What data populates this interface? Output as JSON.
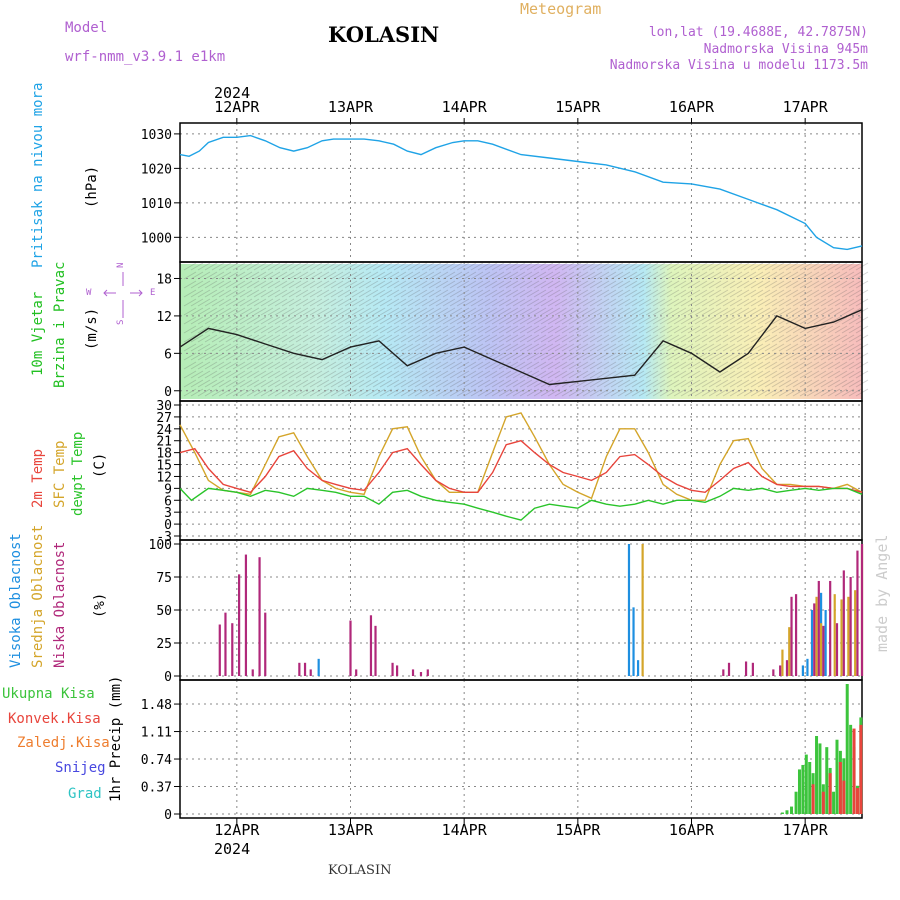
{
  "header": {
    "model_label": "Model",
    "model_name": "wrf-nmm_v3.9.1  e1km",
    "station": "KOLASIN",
    "product": "Meteogram",
    "lonlat": "lon,lat (19.4688E, 42.7875N)",
    "elevation": "Nadmorska Visina 945m",
    "model_elevation": "Nadmorska Visina u modelu 1173.5m",
    "year_top": "2024",
    "year_bottom": "2024",
    "footer_station": "KOLASIN",
    "credit": "made by Angel"
  },
  "colors": {
    "pressure": "#1fa3e6",
    "wind_label": "#22c022",
    "t2m": "#e8453c",
    "tsfc": "#d4a52a",
    "dewpoint": "#2ac42a",
    "high_cloud": "#1e8fe0",
    "mid_cloud": "#d4a52a",
    "low_cloud": "#b0287a",
    "total_precip": "#3cc43c",
    "conv_precip": "#e8453c",
    "frozen_precip": "#ee7d2e",
    "snow": "#4848e0",
    "graupel": "#2ec4c4",
    "compass": "#b060d0",
    "credit": "#cccccc",
    "grid": "#888888"
  },
  "chart_data": [
    {
      "type": "line",
      "name_labels": [
        "Pritisak na nivou mora",
        "(hPa)"
      ],
      "x_ticks": [
        "12APR",
        "13APR",
        "14APR",
        "15APR",
        "16APR",
        "17APR"
      ],
      "ylim": [
        994,
        1032
      ],
      "y_ticks": [
        1000,
        1010,
        1020,
        1030
      ],
      "x_range_days": [
        -0.5,
        5.5
      ],
      "series": [
        {
          "x": [
            -0.5,
            -0.42,
            -0.33,
            -0.25,
            -0.12,
            0,
            0.12,
            0.25,
            0.38,
            0.5,
            0.62,
            0.75,
            0.85,
            1.0,
            1.12,
            1.25,
            1.38,
            1.5,
            1.62,
            1.75,
            1.9,
            2.0,
            2.12,
            2.25,
            2.5,
            2.75,
            3.0,
            3.25,
            3.5,
            3.75,
            4.0,
            4.25,
            4.5,
            4.75,
            5.0,
            5.1,
            5.25,
            5.37,
            5.5
          ],
          "values": [
            1024,
            1023.5,
            1025,
            1027.5,
            1029,
            1029,
            1029.5,
            1028,
            1026,
            1025,
            1026,
            1028,
            1028.5,
            1028.5,
            1028.5,
            1028,
            1027,
            1025,
            1024,
            1026,
            1027.5,
            1028,
            1028,
            1027,
            1024,
            1023,
            1022,
            1021,
            1019,
            1016,
            1015.5,
            1014,
            1011,
            1008,
            1004,
            1000,
            997,
            996.5,
            997.5
          ]
        }
      ]
    },
    {
      "type": "line",
      "name_labels": [
        "10m Vjetar",
        "Brzina i Pravac",
        "(m/s)"
      ],
      "compass": {
        "north": "N",
        "south": "S",
        "west": "W",
        "east": "E"
      },
      "ylim": [
        -1,
        20
      ],
      "y_ticks": [
        0,
        6,
        12,
        18
      ],
      "series": [
        {
          "name": "speed",
          "x": [
            -0.5,
            -0.25,
            0,
            0.25,
            0.5,
            0.75,
            1.0,
            1.25,
            1.5,
            1.75,
            2.0,
            2.25,
            2.5,
            2.75,
            3.0,
            3.25,
            3.5,
            3.75,
            4.0,
            4.25,
            4.5,
            4.75,
            5.0,
            5.25,
            5.5
          ],
          "values": [
            7,
            10,
            9,
            7.5,
            6,
            5,
            7,
            8,
            4,
            6,
            7,
            5,
            3,
            1,
            1.5,
            2,
            2.5,
            8,
            6,
            3,
            6,
            12,
            10,
            11,
            13
          ]
        }
      ]
    },
    {
      "type": "line",
      "name_labels": [
        "2m Temp",
        "SFC Temp",
        "dewpt Temp",
        "(C)"
      ],
      "ylim": [
        -3,
        30
      ],
      "y_ticks": [
        -3,
        0,
        3,
        6,
        9,
        12,
        15,
        18,
        21,
        24,
        27,
        30
      ],
      "series": [
        {
          "name": "SFC Temp",
          "x": [
            -0.5,
            -0.37,
            -0.25,
            -0.12,
            0,
            0.12,
            0.25,
            0.37,
            0.5,
            0.62,
            0.75,
            0.87,
            1.0,
            1.12,
            1.25,
            1.37,
            1.5,
            1.62,
            1.75,
            1.87,
            2.0,
            2.12,
            2.25,
            2.37,
            2.5,
            2.62,
            2.75,
            2.87,
            3.0,
            3.12,
            3.25,
            3.37,
            3.5,
            3.62,
            3.75,
            3.87,
            4.0,
            4.12,
            4.25,
            4.37,
            4.5,
            4.62,
            4.75,
            4.87,
            5.0,
            5.12,
            5.25,
            5.37,
            5.5
          ],
          "values": [
            25,
            18,
            11,
            8.5,
            8,
            7.5,
            15,
            22,
            23,
            17,
            11,
            9,
            8,
            7.5,
            17,
            24,
            24.5,
            17,
            11,
            8,
            8,
            8,
            18,
            27,
            28,
            22,
            15,
            10,
            8,
            6.5,
            17,
            24,
            24,
            18,
            10,
            7.5,
            6,
            6,
            15,
            21,
            21.5,
            14,
            10,
            10,
            9.5,
            9.5,
            9,
            10,
            8
          ]
        },
        {
          "name": "2m Temp",
          "x": [
            -0.5,
            -0.37,
            -0.25,
            -0.12,
            0,
            0.12,
            0.25,
            0.37,
            0.5,
            0.62,
            0.75,
            0.87,
            1.0,
            1.12,
            1.25,
            1.37,
            1.5,
            1.62,
            1.75,
            1.87,
            2.0,
            2.12,
            2.25,
            2.37,
            2.5,
            2.62,
            2.75,
            2.87,
            3.0,
            3.12,
            3.25,
            3.37,
            3.5,
            3.62,
            3.75,
            3.87,
            4.0,
            4.12,
            4.25,
            4.37,
            4.5,
            4.62,
            4.75,
            4.87,
            5.0,
            5.12,
            5.25,
            5.37,
            5.5
          ],
          "values": [
            18,
            19,
            14,
            10,
            9,
            8,
            12,
            17,
            18.5,
            14,
            11,
            10,
            9,
            8.5,
            13,
            18,
            19,
            15,
            11,
            9,
            8,
            8,
            13,
            20,
            21,
            18,
            15,
            13,
            12,
            11,
            13,
            17,
            17.5,
            15,
            12,
            10,
            8.5,
            8,
            11,
            14,
            15.5,
            12,
            10,
            9.5,
            9.5,
            9.5,
            9,
            9,
            8
          ]
        },
        {
          "name": "dewpt Temp",
          "x": [
            -0.5,
            -0.4,
            -0.25,
            -0.12,
            0,
            0.12,
            0.25,
            0.37,
            0.5,
            0.62,
            0.75,
            0.87,
            1.0,
            1.12,
            1.25,
            1.37,
            1.5,
            1.62,
            1.75,
            1.87,
            2.0,
            2.12,
            2.25,
            2.37,
            2.5,
            2.62,
            2.75,
            2.87,
            3.0,
            3.12,
            3.25,
            3.37,
            3.5,
            3.62,
            3.75,
            3.87,
            4.0,
            4.12,
            4.25,
            4.37,
            4.5,
            4.62,
            4.75,
            4.87,
            5.0,
            5.12,
            5.25,
            5.37,
            5.5
          ],
          "values": [
            9,
            6,
            9,
            8.5,
            8,
            7,
            8.5,
            8,
            7,
            9,
            8.5,
            8,
            7,
            7,
            5,
            8,
            8.5,
            7,
            6,
            5.5,
            5,
            4,
            3,
            2,
            1,
            4,
            5,
            4.5,
            4,
            6,
            5,
            4.5,
            5,
            6,
            5,
            6,
            6,
            5.5,
            7,
            9,
            8.5,
            9,
            8,
            8.5,
            9,
            8.5,
            9,
            9,
            7.5
          ]
        }
      ]
    },
    {
      "type": "bar",
      "name_labels": [
        "Visoka Oblacnost",
        "Srednja Oblacnost",
        "Niska Oblacnost",
        "(%)"
      ],
      "ylim": [
        0,
        100
      ],
      "y_ticks": [
        0,
        25,
        50,
        75,
        100
      ],
      "series": [
        {
          "name": "Visoka Oblacnost",
          "x": [
            0.72,
            3.45,
            3.49,
            3.53,
            4.98,
            5.02,
            5.06,
            5.1,
            5.14,
            5.18
          ],
          "values": [
            13,
            100,
            52,
            12,
            8,
            13,
            50,
            50,
            63,
            50
          ]
        },
        {
          "name": "Srednja Oblacnost",
          "x": [
            3.57,
            4.8,
            4.86,
            5.1,
            5.14,
            5.26,
            5.32,
            5.38,
            5.44,
            5.5
          ],
          "values": [
            100,
            20,
            37,
            60,
            40,
            62,
            58,
            60,
            65,
            100
          ]
        },
        {
          "name": "Niska Oblacnost",
          "x": [
            -0.15,
            -0.1,
            -0.04,
            0.02,
            0.08,
            0.14,
            0.2,
            0.25,
            0.55,
            0.6,
            0.65,
            1.0,
            1.05,
            1.18,
            1.22,
            1.37,
            1.41,
            1.55,
            1.62,
            1.68,
            4.28,
            4.33,
            4.48,
            4.54,
            4.72,
            4.78,
            4.84,
            4.88,
            4.92,
            5.08,
            5.12,
            5.16,
            5.22,
            5.28,
            5.34,
            5.4,
            5.46,
            5.5
          ],
          "values": [
            39,
            48,
            40,
            77,
            92,
            5,
            90,
            48,
            10,
            10,
            5,
            42,
            5,
            46,
            38,
            10,
            8,
            5,
            3,
            5,
            5,
            10,
            11,
            10,
            5,
            8,
            12,
            60,
            62,
            55,
            72,
            38,
            72,
            40,
            80,
            75,
            95,
            100
          ]
        }
      ]
    },
    {
      "type": "bar",
      "name_labels": [
        "Ukupna Kisa",
        "Konvek.Kisa",
        "Zaledj.Kisa",
        "Snijeg",
        "Grad",
        "1hr Precip (mm)"
      ],
      "ylim": [
        0,
        1.75
      ],
      "y_ticks": [
        0,
        0.37,
        0.74,
        1.11,
        1.48
      ],
      "series": [
        {
          "name": "Ukupna Kisa",
          "x": [
            4.8,
            4.84,
            4.88,
            4.92,
            4.95,
            4.98,
            5.01,
            5.04,
            5.07,
            5.1,
            5.13,
            5.16,
            5.19,
            5.22,
            5.25,
            5.28,
            5.31,
            5.34,
            5.37,
            5.4,
            5.43,
            5.46,
            5.49
          ],
          "values": [
            0.02,
            0.05,
            0.1,
            0.3,
            0.6,
            0.66,
            0.8,
            0.7,
            0.55,
            1.05,
            0.95,
            0.4,
            0.9,
            0.62,
            0.3,
            1.0,
            0.85,
            0.75,
            1.75,
            1.2,
            0.9,
            0.38,
            1.3
          ]
        },
        {
          "name": "Konvek.Kisa",
          "x": [
            5.07,
            5.16,
            5.22,
            5.31,
            5.34,
            5.43,
            5.46,
            5.49
          ],
          "values": [
            0.4,
            0.3,
            0.55,
            0.7,
            0.45,
            1.15,
            0.35,
            1.2
          ]
        }
      ]
    }
  ]
}
